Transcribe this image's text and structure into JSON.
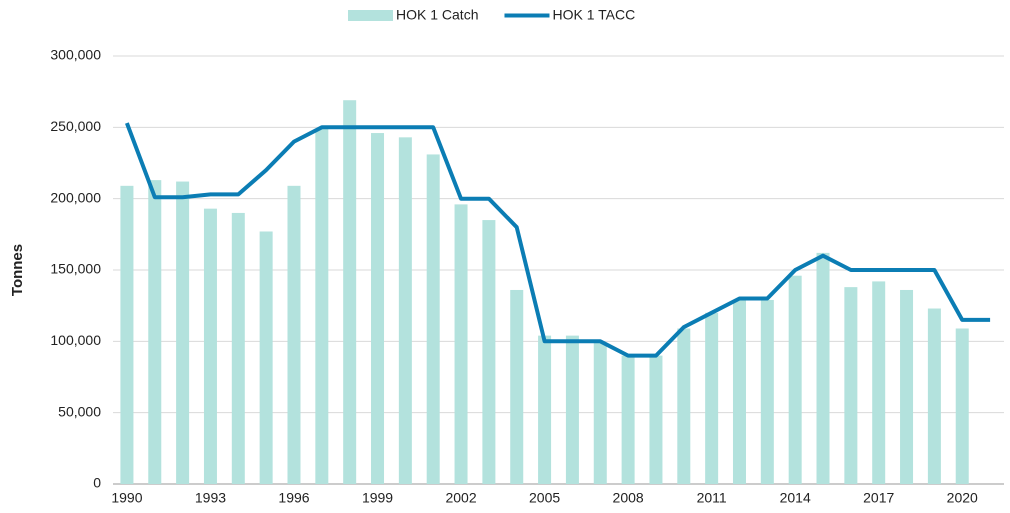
{
  "chart_data": {
    "type": "bar_line",
    "y_label": "Tonnes",
    "categories": [
      "1990",
      null,
      null,
      "1993",
      null,
      null,
      "1996",
      null,
      null,
      "1999",
      null,
      null,
      "2002",
      null,
      null,
      "2005",
      null,
      null,
      "2008",
      null,
      null,
      "2011",
      null,
      null,
      "2014",
      null,
      null,
      "2017",
      null,
      null,
      "2020",
      null
    ],
    "series": [
      {
        "name": "HOK 1 Catch",
        "type": "bar",
        "color": "#b3e2dd",
        "values": [
          209000,
          213000,
          212000,
          193000,
          190000,
          177000,
          209000,
          249000,
          269000,
          246000,
          243000,
          231000,
          196000,
          185000,
          136000,
          104000,
          104000,
          99000,
          90000,
          90000,
          109000,
          120000,
          129000,
          129000,
          146000,
          162000,
          138000,
          142000,
          136000,
          123000,
          109000,
          null
        ]
      },
      {
        "name": "HOK 1 TACC",
        "type": "line",
        "color": "#0b7db4",
        "values": [
          253000,
          201000,
          201000,
          203000,
          203000,
          220000,
          240000,
          250000,
          250000,
          250000,
          250000,
          250000,
          200000,
          200000,
          180000,
          100000,
          100000,
          100000,
          90000,
          90000,
          110000,
          120000,
          130000,
          130000,
          150000,
          160000,
          150000,
          150000,
          150000,
          150000,
          115000,
          115000
        ]
      }
    ],
    "ylim": [
      0,
      300000
    ],
    "yticks": [
      0,
      {
        "value": 50000,
        "label": "50,000"
      },
      {
        "value": 100000,
        "label": "100,000"
      },
      {
        "value": 150000,
        "label": "150,000"
      },
      {
        "value": 200000,
        "label": "200,000"
      },
      {
        "value": 250000,
        "label": "250,000"
      },
      {
        "value": 300000,
        "label": "300,000"
      }
    ],
    "grid": true,
    "legend": "top"
  }
}
